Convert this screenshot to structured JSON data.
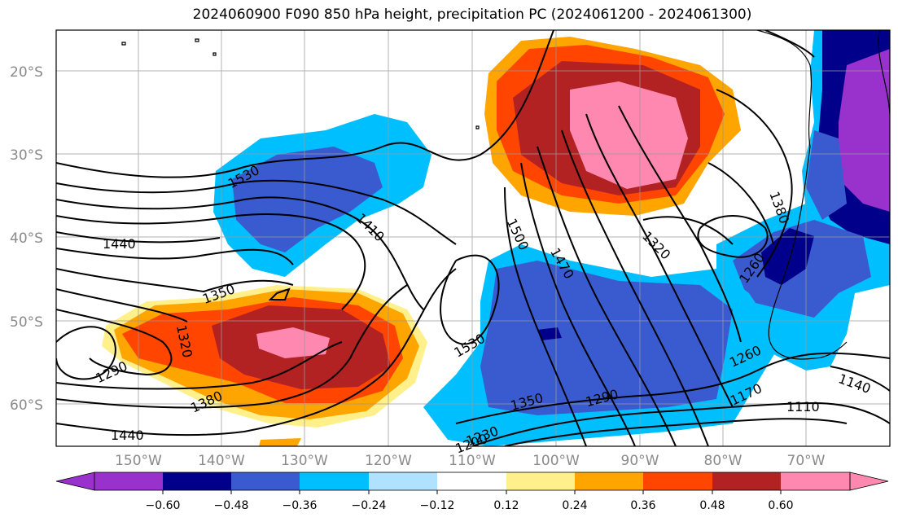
{
  "title": "2024060900 F090 850 hPa height, precipitation PC (2024061200 - 2024061300)",
  "lat_labels": [
    "20°S",
    "30°S",
    "40°S",
    "50°S",
    "60°S"
  ],
  "lon_labels": [
    "150°W",
    "140°W",
    "130°W",
    "120°W",
    "110°W",
    "100°W",
    "90°W",
    "80°W",
    "70°W"
  ],
  "contour_labels": [
    "1530",
    "1410",
    "1440",
    "1350",
    "1320",
    "1290",
    "1380",
    "1440",
    "1500",
    "1470",
    "1530",
    "1350",
    "1290",
    "1230",
    "1200",
    "1320",
    "1380",
    "1260",
    "1260",
    "1170",
    "1140",
    "1110"
  ],
  "colorbar": {
    "tick_labels": [
      "−0.60",
      "−0.48",
      "−0.36",
      "−0.24",
      "−0.12",
      "0.12",
      "0.24",
      "0.36",
      "0.48",
      "0.60"
    ],
    "colors": [
      "#9932cc",
      "#00008b",
      "#3a5bd0",
      "#00bfff",
      "#b0e2ff",
      "#ffffff",
      "#fff08c",
      "#ffa500",
      "#ff4500",
      "#b22222",
      "#ff88b0"
    ]
  }
}
